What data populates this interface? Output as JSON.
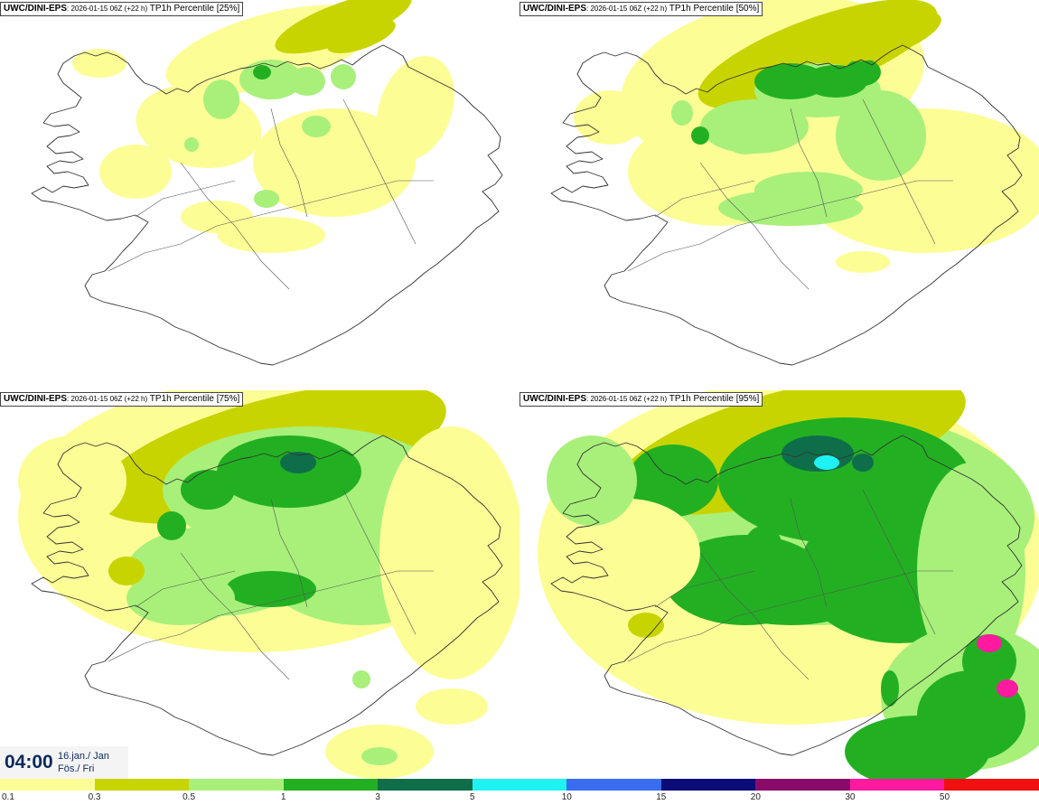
{
  "panels": [
    {
      "model": "UWC/DINI-EPS",
      "meta": ": 2026-01-15 06Z (+22 h)",
      "product": "TP1h Percentile [25%]",
      "level": 0
    },
    {
      "model": "UWC/DINI-EPS",
      "meta": ": 2026-01-15 06Z (+22 h)",
      "product": "TP1h Percentile [50%]",
      "level": 1
    },
    {
      "model": "UWC/DINI-EPS",
      "meta": ": 2026-01-15 06Z (+22 h)",
      "product": "TP1h Percentile [75%]",
      "level": 2
    },
    {
      "model": "UWC/DINI-EPS",
      "meta": ": 2026-01-15 06Z (+22 h)",
      "product": "TP1h Percentile [95%]",
      "level": 3
    }
  ],
  "time": {
    "hour": "04:00",
    "date": "16.jan./ Jan",
    "day": "Fös./ Fri"
  },
  "legend": {
    "bins": [
      {
        "label": "0.1",
        "color": "#fdfd96"
      },
      {
        "label": "0.3",
        "color": "#c8d400"
      },
      {
        "label": "0.5",
        "color": "#a8f07a"
      },
      {
        "label": "1",
        "color": "#22b022"
      },
      {
        "label": "3",
        "color": "#0f6e4a"
      },
      {
        "label": "5",
        "color": "#1ff2f2"
      },
      {
        "label": "10",
        "color": "#3a6cf0"
      },
      {
        "label": "15",
        "color": "#0c0c78"
      },
      {
        "label": "20",
        "color": "#8a0a6a"
      },
      {
        "label": "30",
        "color": "#ff1aa0"
      },
      {
        "label": "50",
        "color": "#f01010"
      }
    ]
  }
}
